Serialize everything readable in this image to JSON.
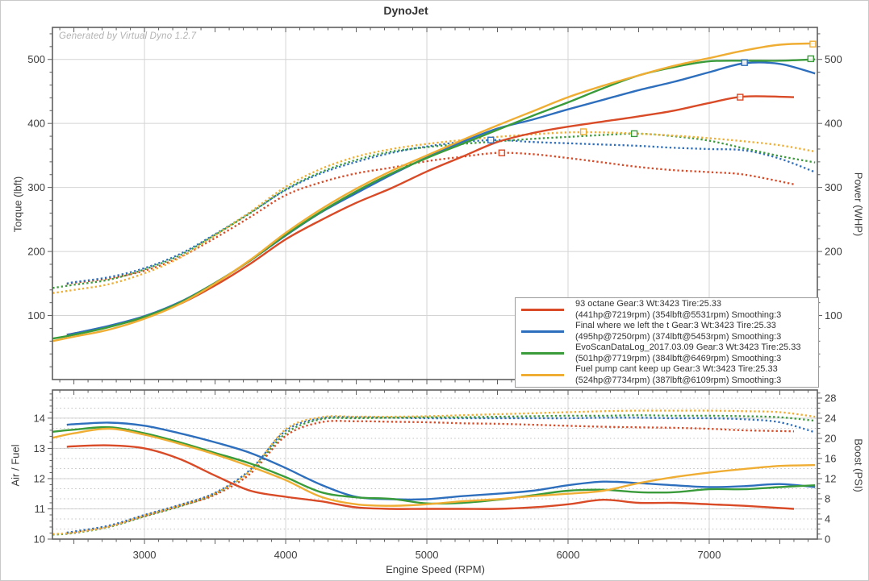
{
  "title": "DynoJet",
  "watermark": "Generated by Virtual Dyno 1.2.7",
  "colors": {
    "red": "#d94a27",
    "blue": "#2e6fbd",
    "green": "#3a9b3a",
    "orange": "#efae33",
    "frame": "#5f5f5f",
    "grid": "#d4d4d4",
    "grid_dotted": "#c2c2c2",
    "tick_label": "#3d3d3d"
  },
  "chart_data": [
    {
      "type": "line",
      "title": "DynoJet",
      "xlabel": "Engine Speed (RPM)",
      "ylabel_left": "Torque (lbft)",
      "ylabel_right": "Power (WHP)",
      "x_range": [
        2348,
        7766
      ],
      "x_ticks": [
        3000,
        4000,
        5000,
        6000,
        7000
      ],
      "x_minor_step": 100,
      "y_range": [
        0,
        550
      ],
      "y_ticks": [
        100,
        200,
        300,
        400,
        500
      ],
      "y_minor_step": 20,
      "grid": true,
      "legend_position": "lower-right",
      "series": [
        {
          "name": "93 octane",
          "color": "red",
          "rpm": [
            2450,
            2500,
            2750,
            3000,
            3250,
            3500,
            3750,
            4000,
            4250,
            4500,
            4750,
            5000,
            5250,
            5500,
            5750,
            6000,
            6250,
            6500,
            6750,
            7000,
            7250,
            7600
          ],
          "power": [
            70,
            72,
            83,
            97,
            118,
            147,
            181,
            219,
            249,
            276,
            299,
            325,
            348,
            371,
            385,
            395,
            403,
            411,
            420,
            432,
            442,
            441
          ],
          "torque": [
            149,
            151,
            158,
            170,
            191,
            221,
            254,
            288,
            308,
            322,
            331,
            341,
            348,
            354,
            352,
            346,
            339,
            332,
            327,
            324,
            320,
            305
          ],
          "power_peak": {
            "rpm": 7219,
            "value": 441
          },
          "torque_peak": {
            "rpm": 5531,
            "value": 354
          }
        },
        {
          "name": "Final where we left the t",
          "color": "blue",
          "rpm": [
            2450,
            2500,
            2750,
            3000,
            3250,
            3500,
            3750,
            4000,
            4250,
            4500,
            4750,
            5000,
            5250,
            5500,
            5750,
            6000,
            6250,
            6500,
            6750,
            7000,
            7250,
            7500,
            7750
          ],
          "power": [
            70,
            72,
            84,
            99,
            121,
            151,
            186,
            225,
            261,
            291,
            320,
            347,
            371,
            392,
            406,
            422,
            437,
            452,
            465,
            480,
            494,
            493,
            478
          ],
          "torque": [
            150,
            152,
            160,
            174,
            196,
            227,
            261,
            296,
            322,
            340,
            354,
            364,
            371,
            374,
            371,
            369,
            367,
            365,
            362,
            360,
            358,
            345,
            324
          ],
          "power_peak": {
            "rpm": 7250,
            "value": 495
          },
          "torque_peak": {
            "rpm": 5453,
            "value": 374
          }
        },
        {
          "name": "EvoScanDataLog_2017.03.09",
          "color": "green",
          "rpm": [
            2350,
            2500,
            2750,
            3000,
            3250,
            3500,
            3750,
            4000,
            4250,
            4500,
            4750,
            5000,
            5250,
            5500,
            5750,
            6000,
            6250,
            6500,
            6750,
            7000,
            7250,
            7500,
            7750
          ],
          "power": [
            64,
            70,
            82,
            98,
            120,
            151,
            186,
            226,
            262,
            294,
            322,
            346,
            368,
            390,
            412,
            433,
            455,
            475,
            488,
            497,
            498,
            498,
            500
          ],
          "torque": [
            143,
            148,
            156,
            172,
            194,
            226,
            260,
            297,
            324,
            343,
            356,
            363,
            368,
            372,
            376,
            379,
            382,
            384,
            380,
            373,
            361,
            349,
            339
          ],
          "power_peak": {
            "rpm": 7719,
            "value": 501
          },
          "torque_peak": {
            "rpm": 6469,
            "value": 384
          }
        },
        {
          "name": "Fuel pump cant keep up",
          "color": "orange",
          "rpm": [
            2350,
            2500,
            2750,
            3000,
            3250,
            3500,
            3750,
            4000,
            4250,
            4500,
            4750,
            5000,
            5250,
            5500,
            5750,
            6000,
            6250,
            6500,
            6750,
            7000,
            7250,
            7500,
            7750
          ],
          "power": [
            60,
            67,
            78,
            95,
            118,
            150,
            187,
            229,
            266,
            298,
            326,
            350,
            374,
            397,
            419,
            441,
            459,
            475,
            490,
            502,
            514,
            523,
            525
          ],
          "torque": [
            135,
            140,
            149,
            166,
            190,
            225,
            262,
            301,
            329,
            348,
            360,
            368,
            374,
            379,
            383,
            386,
            386,
            384,
            381,
            377,
            372,
            366,
            356
          ],
          "power_peak": {
            "rpm": 7734,
            "value": 524
          },
          "torque_peak": {
            "rpm": 6109,
            "value": 387
          }
        }
      ]
    },
    {
      "type": "line",
      "xlabel": "Engine Speed (RPM)",
      "ylabel_left": "Air / Fuel",
      "ylabel_right": "Boost (PSI)",
      "x_range": [
        2348,
        7766
      ],
      "x_ticks": [
        3000,
        4000,
        5000,
        6000,
        7000
      ],
      "x_minor_step": 100,
      "afr_range": [
        10,
        14.93
      ],
      "afr_ticks": [
        10,
        11,
        12,
        13,
        14
      ],
      "afr_minor_step": 0.2,
      "boost_range": [
        0,
        29.6
      ],
      "boost_ticks": [
        0,
        4,
        8,
        12,
        16,
        20,
        24,
        28
      ],
      "boost_minor_step": 1,
      "grid": true,
      "series": [
        {
          "name": "93 octane",
          "color": "red",
          "rpm": [
            2450,
            2500,
            2750,
            3000,
            3250,
            3500,
            3750,
            4000,
            4250,
            4500,
            4750,
            5000,
            5250,
            5500,
            5750,
            6000,
            6250,
            6500,
            6750,
            7000,
            7250,
            7600
          ],
          "afr": [
            13.05,
            13.07,
            13.1,
            13.0,
            12.65,
            12.1,
            11.6,
            11.4,
            11.25,
            11.05,
            11.0,
            11.0,
            11.0,
            11.0,
            11.05,
            11.15,
            11.3,
            11.2,
            11.2,
            11.15,
            11.1,
            11.0
          ],
          "boost": [
            1.2,
            1.4,
            2.6,
            4.6,
            6.6,
            8.8,
            13.0,
            20.5,
            23.2,
            23.4,
            23.3,
            23.2,
            23.0,
            22.9,
            22.7,
            22.5,
            22.3,
            22.2,
            22.1,
            21.9,
            21.6,
            21.4
          ]
        },
        {
          "name": "Final where we left the t",
          "color": "blue",
          "rpm": [
            2450,
            2500,
            2750,
            3000,
            3250,
            3500,
            3750,
            4000,
            4250,
            4500,
            4750,
            5000,
            5250,
            5500,
            5750,
            6000,
            6250,
            6500,
            6750,
            7000,
            7250,
            7500,
            7750
          ],
          "afr": [
            13.78,
            13.8,
            13.85,
            13.75,
            13.5,
            13.2,
            12.85,
            12.35,
            11.8,
            11.4,
            11.32,
            11.32,
            11.42,
            11.5,
            11.6,
            11.78,
            11.9,
            11.85,
            11.78,
            11.72,
            11.75,
            11.82,
            11.72
          ],
          "boost": [
            1.3,
            1.5,
            2.7,
            4.8,
            6.8,
            9.2,
            13.8,
            21.5,
            24.0,
            24.2,
            24.1,
            24.0,
            24.0,
            24.0,
            24.0,
            24.0,
            24.1,
            24.1,
            24.0,
            24.0,
            23.8,
            23.2,
            21.2
          ]
        },
        {
          "name": "EvoScanDataLog_2017.03.09",
          "color": "green",
          "rpm": [
            2350,
            2500,
            2750,
            3000,
            3250,
            3500,
            3750,
            4000,
            4250,
            4500,
            4750,
            5000,
            5250,
            5500,
            5750,
            6000,
            6250,
            6500,
            6750,
            7000,
            7250,
            7500,
            7750
          ],
          "afr": [
            13.55,
            13.62,
            13.7,
            13.5,
            13.2,
            12.85,
            12.5,
            12.05,
            11.55,
            11.38,
            11.33,
            11.18,
            11.2,
            11.3,
            11.45,
            11.6,
            11.63,
            11.55,
            11.55,
            11.65,
            11.65,
            11.72,
            11.78
          ],
          "boost": [
            0.9,
            1.2,
            2.4,
            4.5,
            6.5,
            9.0,
            13.5,
            21.0,
            23.8,
            24.0,
            24.1,
            24.2,
            24.2,
            24.3,
            24.4,
            24.5,
            24.5,
            24.6,
            24.5,
            24.5,
            24.4,
            24.2,
            23.5
          ]
        },
        {
          "name": "Fuel pump cant keep up",
          "color": "orange",
          "rpm": [
            2350,
            2500,
            2750,
            3000,
            3250,
            3500,
            3750,
            4000,
            4250,
            4500,
            4750,
            5000,
            5250,
            5500,
            5750,
            6000,
            6250,
            6500,
            6750,
            7000,
            7250,
            7500,
            7750
          ],
          "afr": [
            13.35,
            13.5,
            13.65,
            13.45,
            13.15,
            12.8,
            12.4,
            11.95,
            11.4,
            11.15,
            11.1,
            11.15,
            11.25,
            11.32,
            11.42,
            11.5,
            11.6,
            11.85,
            12.05,
            12.2,
            12.32,
            12.42,
            12.45
          ],
          "boost": [
            1.0,
            1.3,
            2.5,
            4.7,
            6.7,
            9.1,
            13.6,
            21.8,
            24.2,
            24.3,
            24.3,
            24.4,
            24.6,
            24.8,
            25.0,
            25.2,
            25.4,
            25.5,
            25.5,
            25.5,
            25.4,
            25.2,
            24.3
          ]
        }
      ]
    }
  ],
  "legend": {
    "entries": [
      {
        "color": "red",
        "line1": "93 octane Gear:3 Wt:3423 Tire:25.33",
        "line2": "(441hp@7219rpm) (354lbft@5531rpm) Smoothing:3"
      },
      {
        "color": "blue",
        "line1": "Final where we left the t Gear:3 Wt:3423 Tire:25.33",
        "line2": "(495hp@7250rpm) (374lbft@5453rpm) Smoothing:3"
      },
      {
        "color": "green",
        "line1": "EvoScanDataLog_2017.03.09 Gear:3 Wt:3423 Tire:25.33",
        "line2": "(501hp@7719rpm) (384lbft@6469rpm) Smoothing:3"
      },
      {
        "color": "orange",
        "line1": "Fuel pump cant keep up Gear:3 Wt:3423 Tire:25.33",
        "line2": "(524hp@7734rpm) (387lbft@6109rpm) Smoothing:3"
      }
    ]
  }
}
